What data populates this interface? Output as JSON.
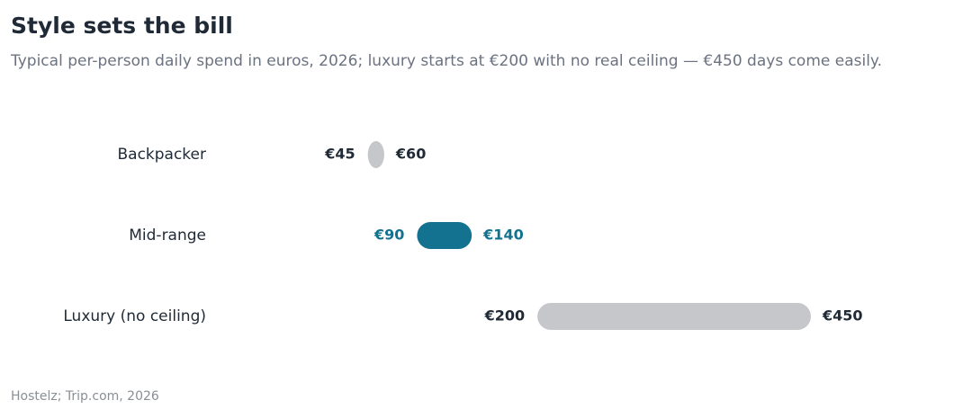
{
  "chart_data": {
    "type": "range",
    "title": "Style sets the bill",
    "subtitle": "Typical per-person daily spend in euros, 2026; luxury starts at €200 with no real ceiling — €450 days come easily.",
    "source": "Hostelz; Trip.com, 2026",
    "categories": [
      "Backpacker",
      "Mid-range",
      "Luxury (no ceiling)"
    ],
    "values": [
      [
        45,
        60
      ],
      [
        90,
        140
      ],
      [
        200,
        450
      ]
    ],
    "value_labels": [
      [
        "€45",
        "€60"
      ],
      [
        "€90",
        "€140"
      ],
      [
        "€200",
        "€450"
      ]
    ],
    "colors": [
      "#c6c7ca",
      "#13728f",
      "#c6c7ca"
    ],
    "label_colors": [
      "#1f2a36",
      "#13728f",
      "#1f2a36"
    ]
  }
}
